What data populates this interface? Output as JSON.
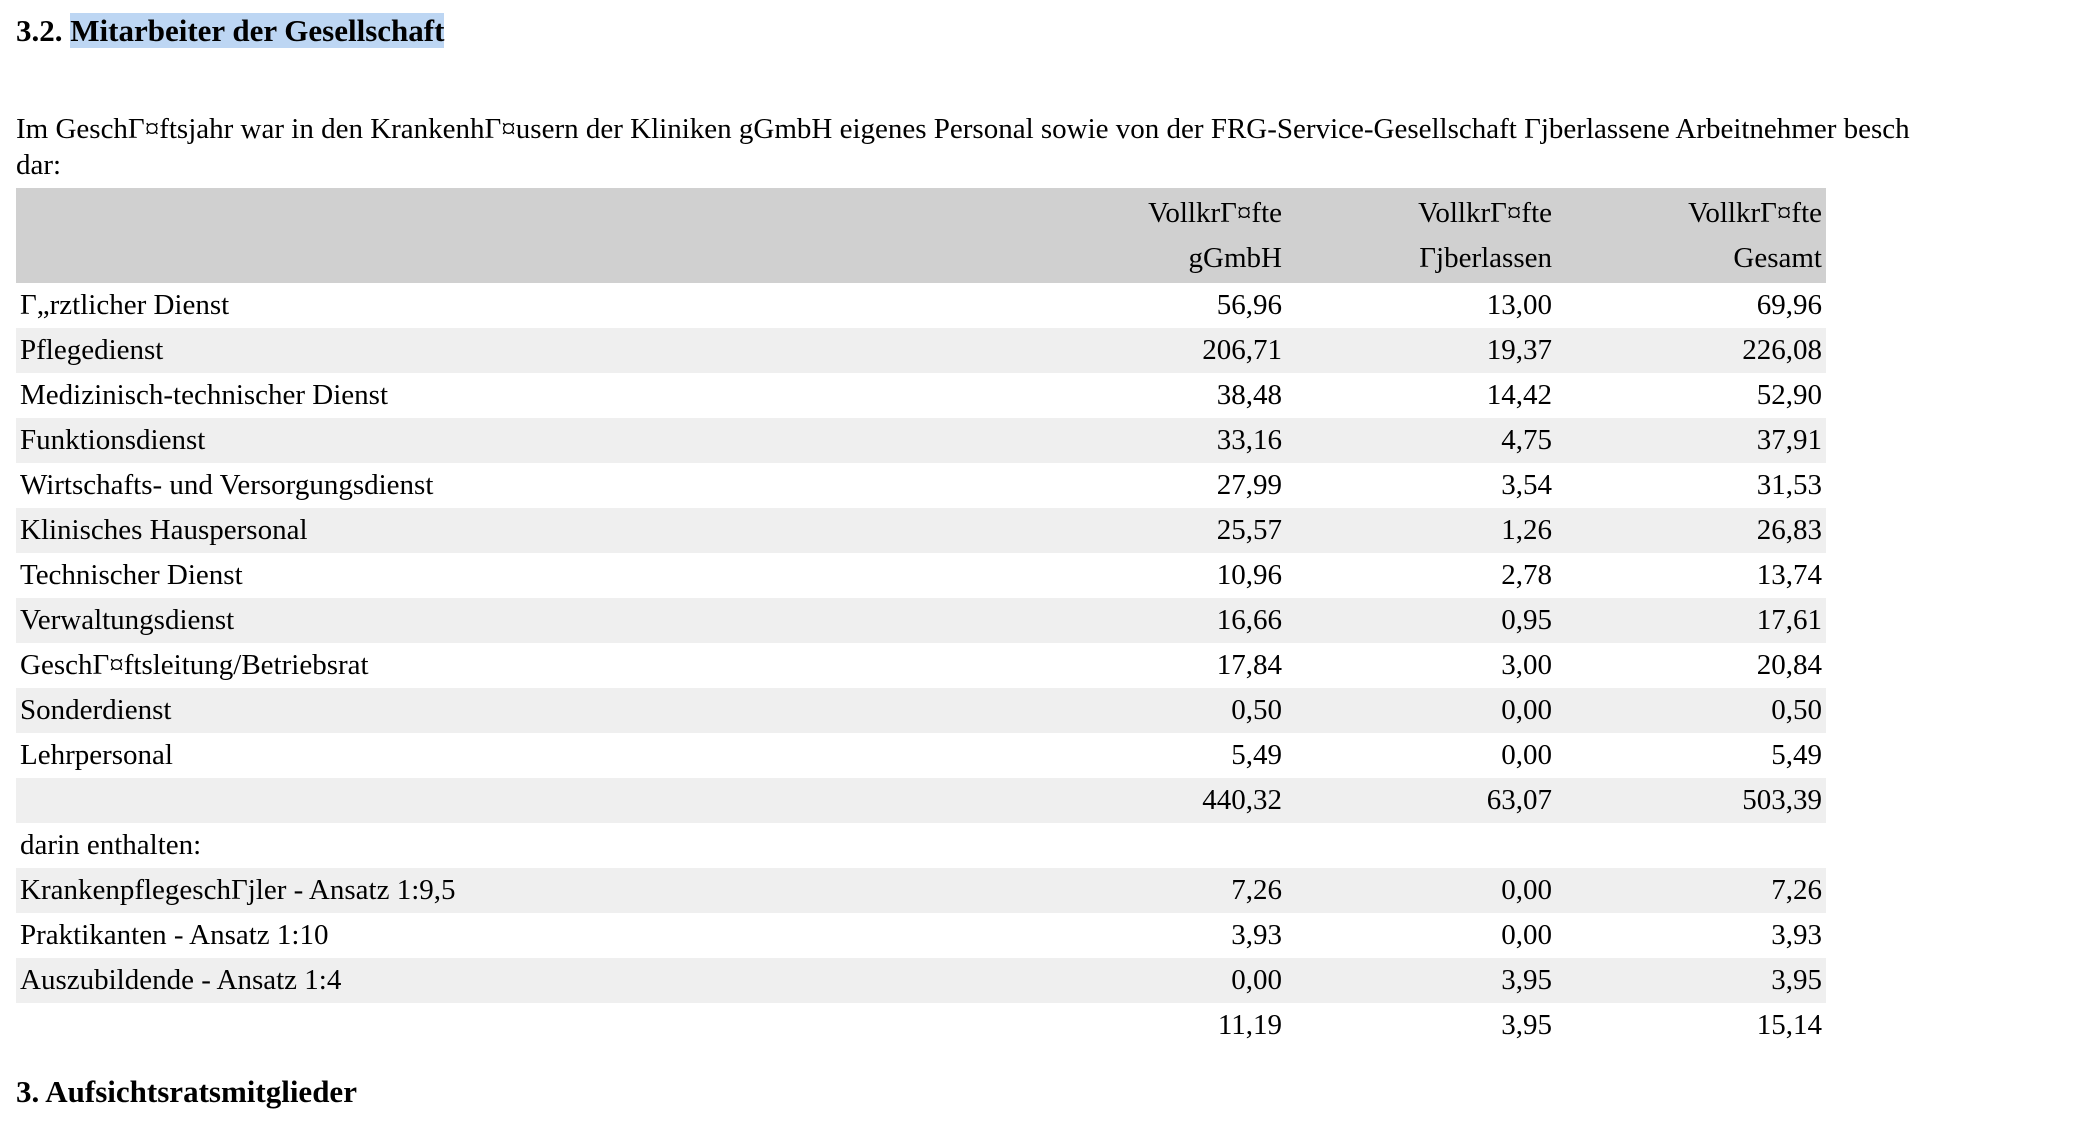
{
  "section": {
    "number": "3.2.",
    "title": "Mitarbeiter der Gesellschaft"
  },
  "intro": {
    "line1": "Im GeschΓ¤ftsjahr war in den KrankenhΓ¤usern der Kliniken gGmbH eigenes Personal sowie von der FRG-Service-Gesellschaft Γјberlassene Arbeitnehmer besch",
    "line2": "dar:"
  },
  "table": {
    "headers": {
      "col1": {
        "line1": "VollkrΓ¤fte",
        "line2": "gGmbH"
      },
      "col2": {
        "line1": "VollkrΓ¤fte",
        "line2": "Γјberlassen"
      },
      "col3": {
        "line1": "VollkrΓ¤fte",
        "line2": "Gesamt"
      }
    },
    "rows": [
      {
        "label": "Γ„rztlicher Dienst",
        "v1": "56,96",
        "v2": "13,00",
        "v3": "69,96"
      },
      {
        "label": "Pflegedienst",
        "v1": "206,71",
        "v2": "19,37",
        "v3": "226,08"
      },
      {
        "label": "Medizinisch-technischer Dienst",
        "v1": "38,48",
        "v2": "14,42",
        "v3": "52,90"
      },
      {
        "label": "Funktionsdienst",
        "v1": "33,16",
        "v2": "4,75",
        "v3": "37,91"
      },
      {
        "label": "Wirtschafts- und Versorgungsdienst",
        "v1": "27,99",
        "v2": "3,54",
        "v3": "31,53"
      },
      {
        "label": "Klinisches Hauspersonal",
        "v1": "25,57",
        "v2": "1,26",
        "v3": "26,83"
      },
      {
        "label": "Technischer Dienst",
        "v1": "10,96",
        "v2": "2,78",
        "v3": "13,74"
      },
      {
        "label": "Verwaltungsdienst",
        "v1": "16,66",
        "v2": "0,95",
        "v3": "17,61"
      },
      {
        "label": "GeschΓ¤ftsleitung/Betriebsrat",
        "v1": "17,84",
        "v2": "3,00",
        "v3": "20,84"
      },
      {
        "label": "Sonderdienst",
        "v1": "0,50",
        "v2": "0,00",
        "v3": "0,50"
      },
      {
        "label": "Lehrpersonal",
        "v1": "5,49",
        "v2": "0,00",
        "v3": "5,49"
      },
      {
        "label": "",
        "v1": "440,32",
        "v2": "63,07",
        "v3": "503,39"
      },
      {
        "label": "darin enthalten:",
        "v1": "",
        "v2": "",
        "v3": ""
      },
      {
        "label": "KrankenpflegeschΓјler - Ansatz 1:9,5",
        "v1": "7,26",
        "v2": "0,00",
        "v3": "7,26"
      },
      {
        "label": "Praktikanten - Ansatz 1:10",
        "v1": "3,93",
        "v2": "0,00",
        "v3": "3,93"
      },
      {
        "label": "Auszubildende - Ansatz 1:4",
        "v1": "0,00",
        "v2": "3,95",
        "v3": "3,95"
      },
      {
        "label": "",
        "v1": "11,19",
        "v2": "3,95",
        "v3": "15,14"
      }
    ]
  },
  "next_section": {
    "title": "3. Aufsichtsratsmitglieder"
  }
}
